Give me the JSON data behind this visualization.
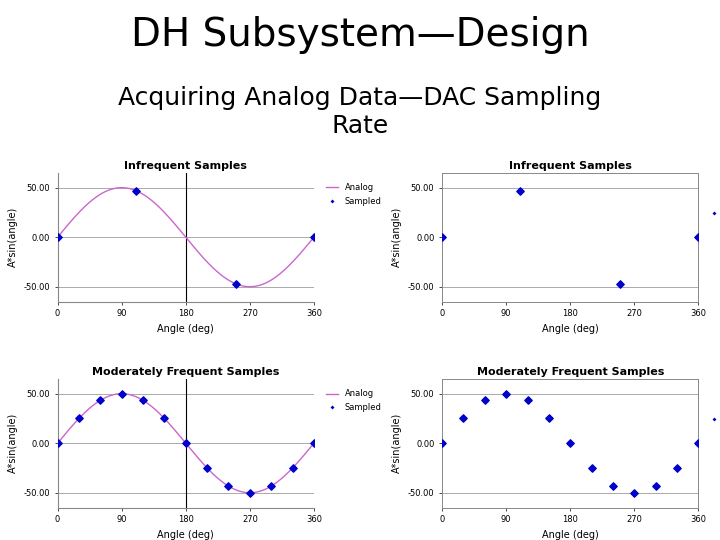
{
  "title_line1": "DH Subsystem—Design",
  "title_line2": "Acquiring Analog Data—DAC Sampling\nRate",
  "title_fontsize": 28,
  "subtitle_fontsize": 18,
  "background_color": "#ffffff",
  "plot_titles": [
    "Infrequent Samples",
    "Infrequent Samples",
    "Moderately Frequent Samples",
    "Moderately Frequent Samples"
  ],
  "xlabel": "Angle (deg)",
  "ylabel": "A*sin(angle)",
  "amplitude": 50,
  "ylim": [
    -65,
    65
  ],
  "yticks": [
    -50,
    0,
    50
  ],
  "ytick_labels": [
    "-50.00",
    "0.00",
    "50.00"
  ],
  "xlim": [
    0,
    360
  ],
  "xticks": [
    0,
    90,
    180,
    270,
    360
  ],
  "infrequent_sample_angles": [
    0,
    110,
    250,
    360
  ],
  "moderate_sample_angles": [
    0,
    30,
    60,
    90,
    120,
    150,
    180,
    210,
    240,
    270,
    300,
    330,
    360
  ],
  "analog_color": "#cc66cc",
  "sample_color": "#0000cc",
  "legend_analog_label": "Analog",
  "legend_sampled_label": "Sampled",
  "axis_label_fontsize": 7,
  "tick_fontsize": 6,
  "plot_title_fontsize": 8
}
